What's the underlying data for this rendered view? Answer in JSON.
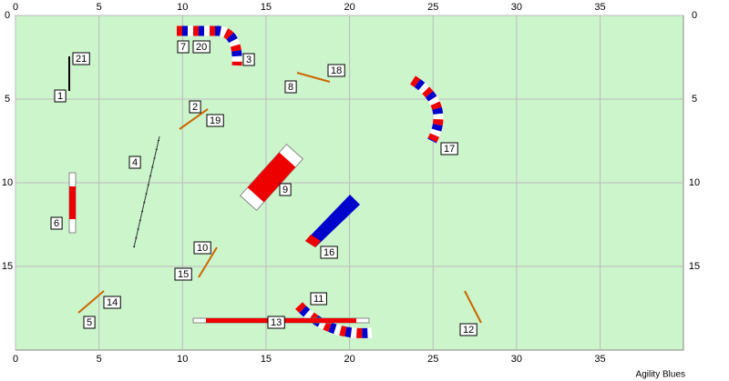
{
  "course": {
    "xticks": [
      0,
      5,
      10,
      15,
      20,
      25,
      30,
      35
    ],
    "yticks": [
      0,
      5,
      10,
      15
    ],
    "labels": [
      "1",
      "2",
      "3",
      "4",
      "5",
      "6",
      "7",
      "8",
      "9",
      "10",
      "11",
      "12",
      "13",
      "14",
      "15",
      "16",
      "17",
      "18",
      "19",
      "20",
      "21"
    ],
    "footer": "Agility Blues"
  }
}
